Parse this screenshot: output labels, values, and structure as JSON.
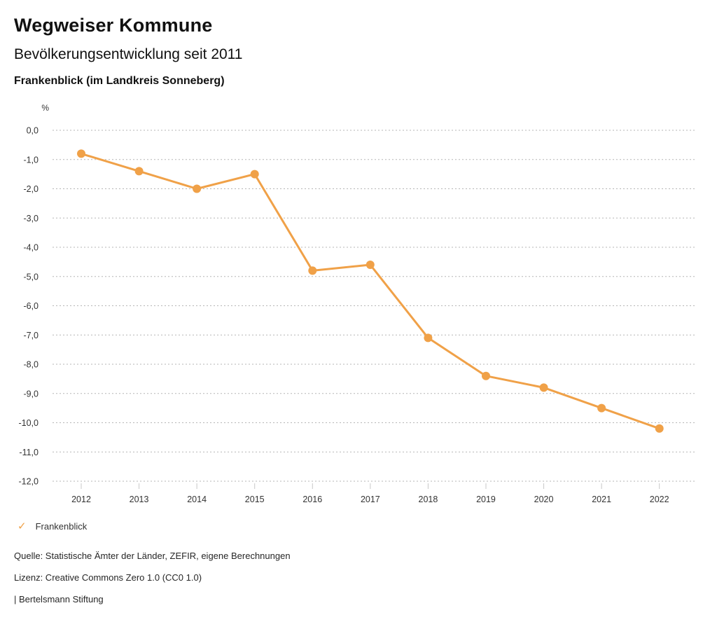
{
  "header": {
    "title": "Wegweiser Kommune",
    "subtitle": "Bevölkerungsentwicklung seit 2011",
    "region": "Frankenblick (im Landkreis Sonneberg)"
  },
  "chart_data": {
    "type": "line",
    "title": "Bevölkerungsentwicklung seit 2011",
    "region": "Frankenblick (im Landkreis Sonneberg)",
    "unit_label": "%",
    "categories": [
      "2012",
      "2013",
      "2014",
      "2015",
      "2016",
      "2017",
      "2018",
      "2019",
      "2020",
      "2021",
      "2022"
    ],
    "series": [
      {
        "name": "Frankenblick",
        "values": [
          -0.8,
          -1.4,
          -2.0,
          -1.5,
          -4.8,
          -4.6,
          -7.1,
          -8.4,
          -8.8,
          -9.5,
          -10.2
        ],
        "color": "#F0A148",
        "marker": "circle"
      }
    ],
    "ylim": [
      -12,
      0
    ],
    "ytick_step": 1,
    "ytick_labels": [
      "0,0",
      "-1,0",
      "-2,0",
      "-3,0",
      "-4,0",
      "-5,0",
      "-6,0",
      "-7,0",
      "-8,0",
      "-9,0",
      "-10,0",
      "-11,0",
      "-12,0"
    ],
    "grid": "horizontal-dotted",
    "legend_position": "bottom-left"
  },
  "legend": {
    "icon": "check",
    "label": "Frankenblick",
    "color": "#F0A148"
  },
  "footer": {
    "source": "Quelle: Statistische Ämter der Länder, ZEFIR, eigene Berechnungen",
    "license": "Lizenz: Creative Commons Zero 1.0 (CC0 1.0)",
    "attribution": "| Bertelsmann Stiftung"
  },
  "colors": {
    "accent": "#F0A148",
    "grid": "#b5b5b5",
    "tick": "#c8c8c8",
    "axis_text": "#333333",
    "text": "#111111"
  }
}
